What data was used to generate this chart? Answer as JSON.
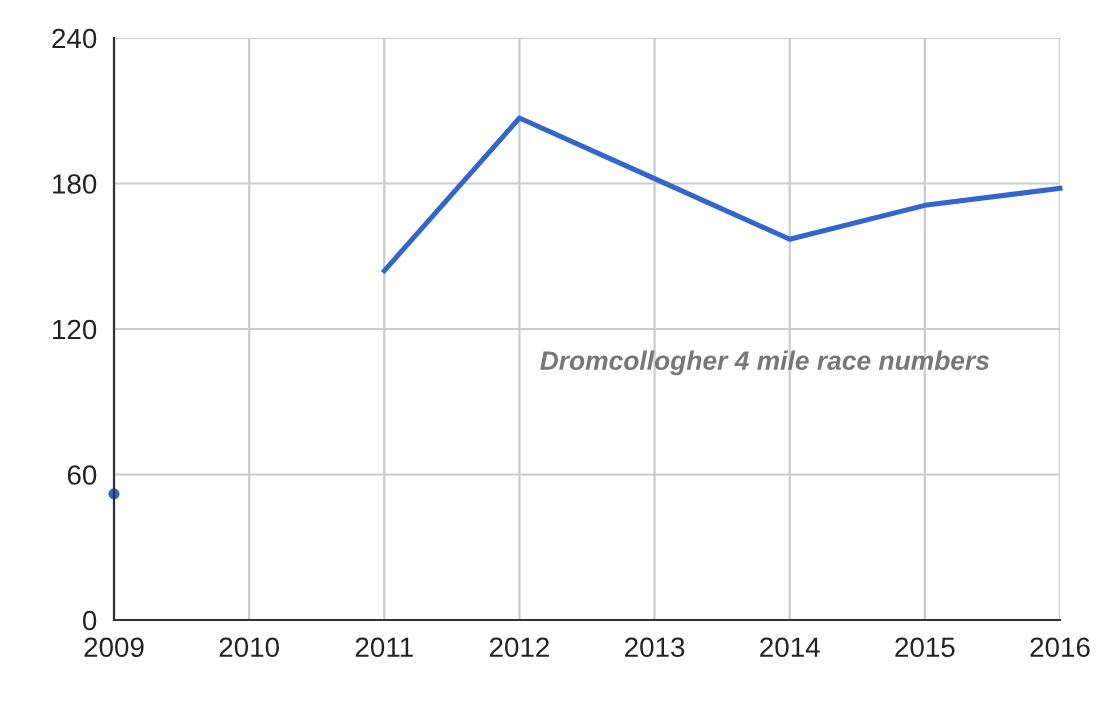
{
  "chart_data": {
    "type": "line",
    "x": [
      2009,
      2010,
      2011,
      2012,
      2013,
      2014,
      2015,
      2016
    ],
    "series": [
      {
        "color": "#3366cc",
        "values": [
          52,
          null,
          144,
          207,
          182,
          157,
          171,
          178
        ]
      }
    ],
    "xlim": [
      2009,
      2016
    ],
    "xticks": [
      2009,
      2010,
      2011,
      2012,
      2013,
      2014,
      2015,
      2016
    ],
    "ylim": [
      0,
      240
    ],
    "yticks": [
      0,
      60,
      120,
      180,
      240
    ],
    "grid": true,
    "line_style": "solid",
    "annotations": [
      "Dromcollogher 4 mile race numbers"
    ]
  }
}
